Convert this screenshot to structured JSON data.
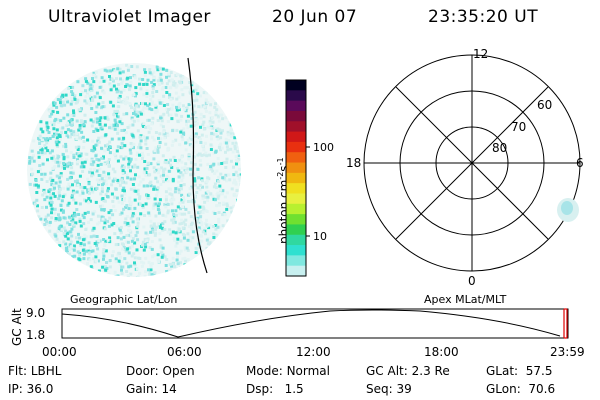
{
  "header": {
    "instrument": "Ultraviolet Imager",
    "date": "20 Jun 07",
    "time": "23:35:20 UT"
  },
  "colorbar": {
    "unit_main": "photon cm",
    "unit_sup1": "-2",
    "unit_s": "s",
    "unit_sup2": "-1",
    "tick_100": "100",
    "tick_10": "10",
    "colors": [
      "#000020",
      "#2a0a4a",
      "#5a0a5a",
      "#7a0a3a",
      "#a0102a",
      "#d01818",
      "#e83010",
      "#f06010",
      "#f09010",
      "#f0b810",
      "#f0e020",
      "#e8f040",
      "#b8f030",
      "#70e030",
      "#30d050",
      "#30d8a0",
      "#30e0d0",
      "#80e8e0",
      "#c8f0f0"
    ]
  },
  "polar": {
    "mlt_12": "12",
    "mlt_18": "18",
    "mlt_6": "6",
    "mlt_0": "0",
    "lat_60": "60",
    "lat_70": "70",
    "lat_80": "80"
  },
  "labels": {
    "geo": "Geographic Lat/Lon",
    "apex": "Apex MLat/MLT"
  },
  "altplot": {
    "ylabel": "GC Alt",
    "y_top": "9.0",
    "y_bot": "1.8",
    "x_ticks": [
      "00:00",
      "06:00",
      "12:00",
      "18:00",
      "23:59"
    ]
  },
  "status": {
    "flt_label": "Flt:",
    "flt_value": "LBHL",
    "ip_label": "IP:",
    "ip_value": "36.0",
    "door_label": "Door:",
    "door_value": "Open",
    "gain_label": "Gain:",
    "gain_value": "14",
    "mode_label": "Mode:",
    "mode_value": "Normal",
    "dsp_label": "Dsp:",
    "dsp_value": "1.5",
    "gcalt_label": "GC Alt:",
    "gcalt_value": "2.3 Re",
    "seq_label": "Seq:",
    "seq_value": "39",
    "glat_label": "GLat:",
    "glat_value": "57.5",
    "glon_label": "GLon:",
    "glon_value": "70.6"
  }
}
